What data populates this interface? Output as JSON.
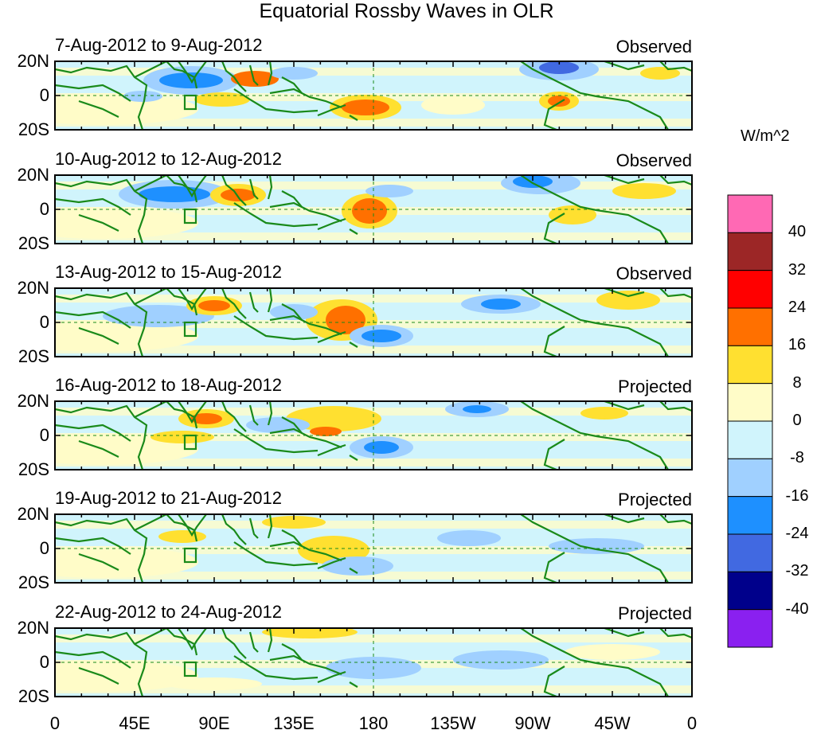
{
  "chart_data": {
    "type": "heatmap",
    "title": "Equatorial Rossby Waves in OLR",
    "xlabel": "",
    "ylabel": "",
    "x_ticks": [
      "0",
      "45E",
      "90E",
      "135E",
      "180",
      "135W",
      "90W",
      "45W",
      "0"
    ],
    "y_ticks": [
      "20N",
      "0",
      "20S"
    ],
    "xlim": [
      0,
      360
    ],
    "ylim": [
      -20,
      20
    ],
    "panels": [
      {
        "dates": "7-Aug-2012 to 9-Aug-2012",
        "type": "Observed"
      },
      {
        "dates": "10-Aug-2012 to 12-Aug-2012",
        "type": "Observed"
      },
      {
        "dates": "13-Aug-2012 to 15-Aug-2012",
        "type": "Observed"
      },
      {
        "dates": "16-Aug-2012 to 18-Aug-2012",
        "type": "Projected"
      },
      {
        "dates": "19-Aug-2012 to 21-Aug-2012",
        "type": "Projected"
      },
      {
        "dates": "22-Aug-2012 to 24-Aug-2012",
        "type": "Projected"
      }
    ],
    "colorbar": {
      "units": "W/m^2",
      "levels": [
        "40",
        "32",
        "24",
        "16",
        "8",
        "0",
        "-8",
        "-16",
        "-24",
        "-32",
        "-40"
      ],
      "colors": [
        "#ff69b4",
        "#9c2626",
        "#ff0000",
        "#ff7000",
        "#ffe030",
        "#fffcc8",
        "#d0f4fc",
        "#a0d0ff",
        "#1e90ff",
        "#4169e1",
        "#00008b",
        "#8a20f0"
      ]
    }
  }
}
